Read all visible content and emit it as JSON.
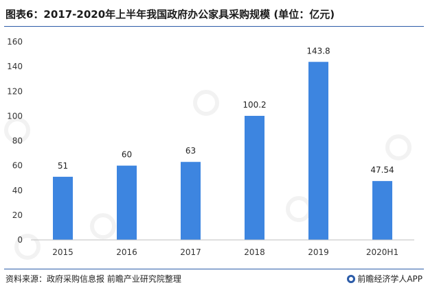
{
  "header": {
    "title": "图表6：2017-2020年上半年我国政府办公家具采购规模 (单位：亿元)"
  },
  "footer": {
    "source": "资料来源：政府采购信息报 前瞻产业研究院整理",
    "brand": "前瞻经济学人APP"
  },
  "colors": {
    "bar": "#3d85e0",
    "axis": "#bfbfbf",
    "rule": "#2b5ba8"
  },
  "chart_data": {
    "type": "bar",
    "categories": [
      "2015",
      "2016",
      "2017",
      "2018",
      "2019",
      "2020H1"
    ],
    "values": [
      51,
      60,
      63,
      100.2,
      143.8,
      47.54
    ],
    "labels": [
      "51",
      "60",
      "63",
      "100.2",
      "143.8",
      "47.54"
    ],
    "title": "图表6：2017-2020年上半年我国政府办公家具采购规模 (单位：亿元)",
    "xlabel": "",
    "ylabel": "",
    "ylim": [
      0,
      160
    ],
    "yticks": [
      0,
      20,
      40,
      60,
      80,
      100,
      120,
      140,
      160
    ],
    "grid": false,
    "legend": "none"
  }
}
